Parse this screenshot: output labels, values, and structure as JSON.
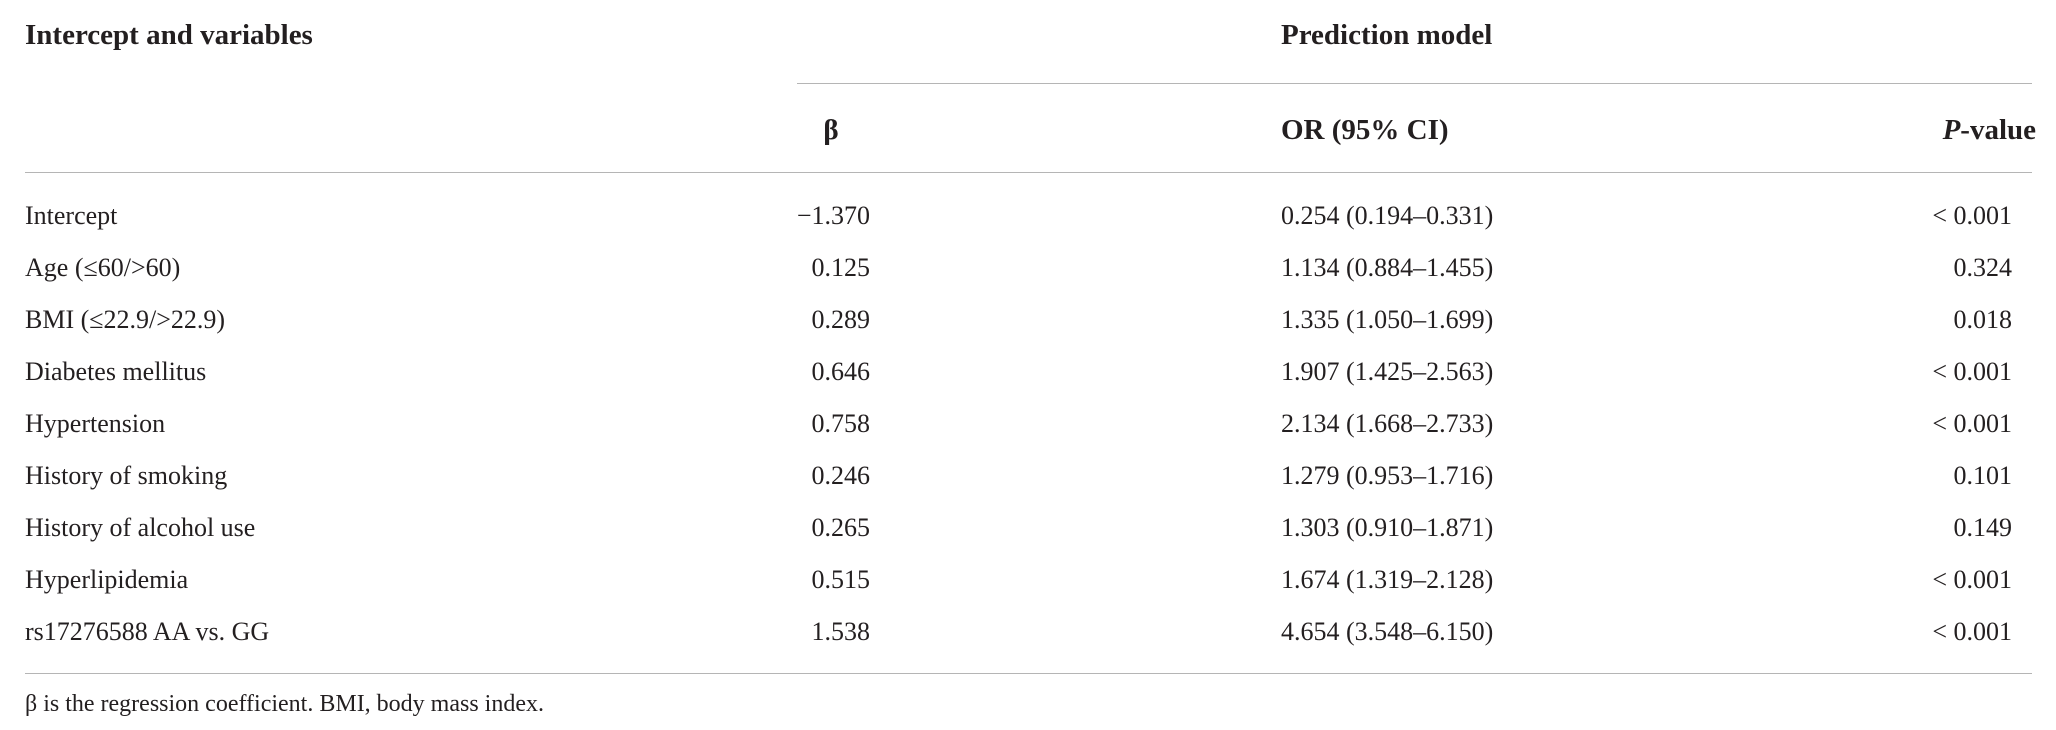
{
  "table": {
    "title": "Intercept and variables",
    "group_header": "Prediction model",
    "columns": [
      "β",
      "OR (95% CI)",
      "P-value"
    ],
    "rows": [
      [
        "Intercept",
        "−1.370",
        "0.254 (0.194–0.331)",
        "< 0.001"
      ],
      [
        "Age (≤60/>60)",
        "0.125",
        "1.134 (0.884–1.455)",
        "0.324"
      ],
      [
        "BMI (≤22.9/>22.9)",
        "0.289",
        "1.335 (1.050–1.699)",
        "0.018"
      ],
      [
        "Diabetes mellitus",
        "0.646",
        "1.907 (1.425–2.563)",
        "< 0.001"
      ],
      [
        "Hypertension",
        "0.758",
        "2.134 (1.668–2.733)",
        "< 0.001"
      ],
      [
        "History of smoking",
        "0.246",
        "1.279 (0.953–1.716)",
        "0.101"
      ],
      [
        "History of alcohol use",
        "0.265",
        "1.303 (0.910–1.871)",
        "0.149"
      ],
      [
        "Hyperlipidemia",
        "0.515",
        "1.674 (1.319–2.128)",
        "< 0.001"
      ],
      [
        "rs17276588 AA vs. GG",
        "1.538",
        "4.654 (3.548–6.150)",
        "< 0.001"
      ]
    ]
  },
  "footnote": "β is the regression coefficient. BMI, body mass index."
}
